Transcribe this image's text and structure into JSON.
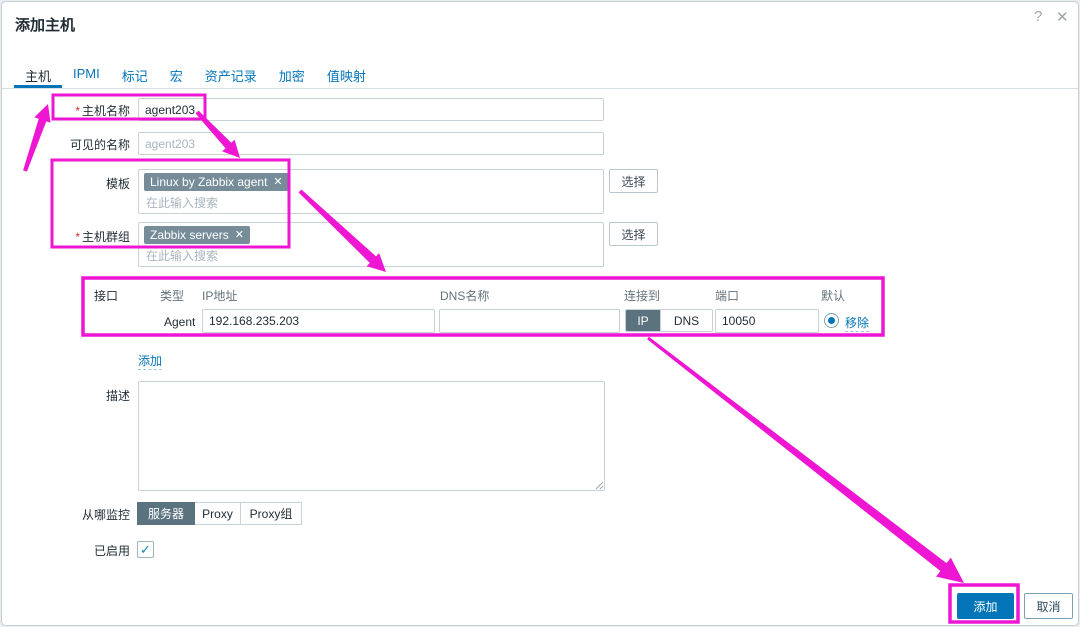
{
  "annotation_color": "#ee15d3",
  "dialog": {
    "title": "添加主机"
  },
  "icons": {
    "help": "?",
    "close": "✕",
    "chip_remove": "✕",
    "check": "✓"
  },
  "required_marker": "*",
  "tabs": [
    {
      "label": "主机",
      "active": true
    },
    {
      "label": "IPMI",
      "active": false
    },
    {
      "label": "标记",
      "active": false
    },
    {
      "label": "宏",
      "active": false
    },
    {
      "label": "资产记录",
      "active": false
    },
    {
      "label": "加密",
      "active": false
    },
    {
      "label": "值映射",
      "active": false
    }
  ],
  "form": {
    "host_name": {
      "label": "主机名称",
      "required": true,
      "value": "agent203"
    },
    "visible_name": {
      "label": "可见的名称",
      "placeholder": "agent203"
    },
    "templates": {
      "label": "模板",
      "chip": "Linux by Zabbix agent",
      "placeholder": "在此输入搜索",
      "select_button": "选择"
    },
    "host_groups": {
      "label": "主机群组",
      "required": true,
      "chip": "Zabbix servers",
      "placeholder": "在此输入搜索",
      "select_button": "选择"
    },
    "interfaces": {
      "label": "接口",
      "headers": {
        "type": "类型",
        "ip": "IP地址",
        "dns": "DNS名称",
        "connect_to": "连接到",
        "port": "端口",
        "default": "默认"
      },
      "row": {
        "type": "Agent",
        "ip": "192.168.235.203",
        "dns": "",
        "connect_ip": "IP",
        "connect_dns": "DNS",
        "selected_connect": "IP",
        "port": "10050",
        "default_selected": true,
        "remove_label": "移除"
      },
      "add_link": "添加"
    },
    "description": {
      "label": "描述",
      "value": ""
    },
    "monitored_by": {
      "label": "从哪监控",
      "options": [
        "服务器",
        "Proxy",
        "Proxy组"
      ],
      "selected": "服务器"
    },
    "enabled": {
      "label": "已启用",
      "checked": true
    }
  },
  "footer": {
    "add_button": "添加",
    "cancel_button": "取消"
  }
}
